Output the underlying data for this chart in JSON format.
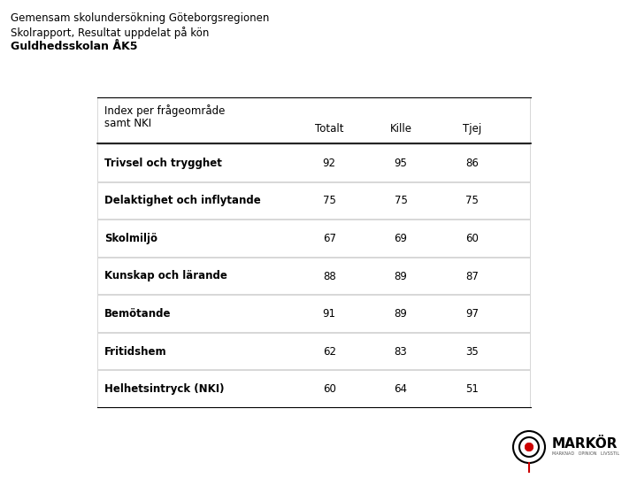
{
  "title_line1": "Gemensam skolundersökning Göteborgsregionen",
  "title_line2": "Skolrapport, Resultat uppdelat på kön",
  "title_line3": "Guldhedsskolan ÅK5",
  "header_col0_line1": "Index per frågeområde",
  "header_col0_line2": "samt NKI",
  "header_col1": "Totalt",
  "header_col2": "Kille",
  "header_col3": "Tjej",
  "rows": [
    [
      "Trivsel och trygghet",
      "92",
      "95",
      "86"
    ],
    [
      "Delaktighet och inflytande",
      "75",
      "75",
      "75"
    ],
    [
      "Skolmiljö",
      "67",
      "69",
      "60"
    ],
    [
      "Kunskap och lärande",
      "88",
      "89",
      "87"
    ],
    [
      "Bemötande",
      "91",
      "89",
      "97"
    ],
    [
      "Fritidshem",
      "62",
      "83",
      "35"
    ],
    [
      "Helhetsintryck (NKI)",
      "60",
      "64",
      "51"
    ]
  ],
  "table_bg": "#d8d8d8",
  "row_bg": "#ffffff",
  "header_line_color": "#000000",
  "text_color": "#000000",
  "background_color": "#ffffff",
  "font_size_title": 8.5,
  "font_size_table": 8.5,
  "logo_text": "MARKÖR",
  "logo_subtext": "MARKNAD   OPINION   LIVSSTIL",
  "logo_circle_color": "#000000",
  "logo_dot_color": "#cc0000",
  "logo_pin_color": "#cc0000"
}
